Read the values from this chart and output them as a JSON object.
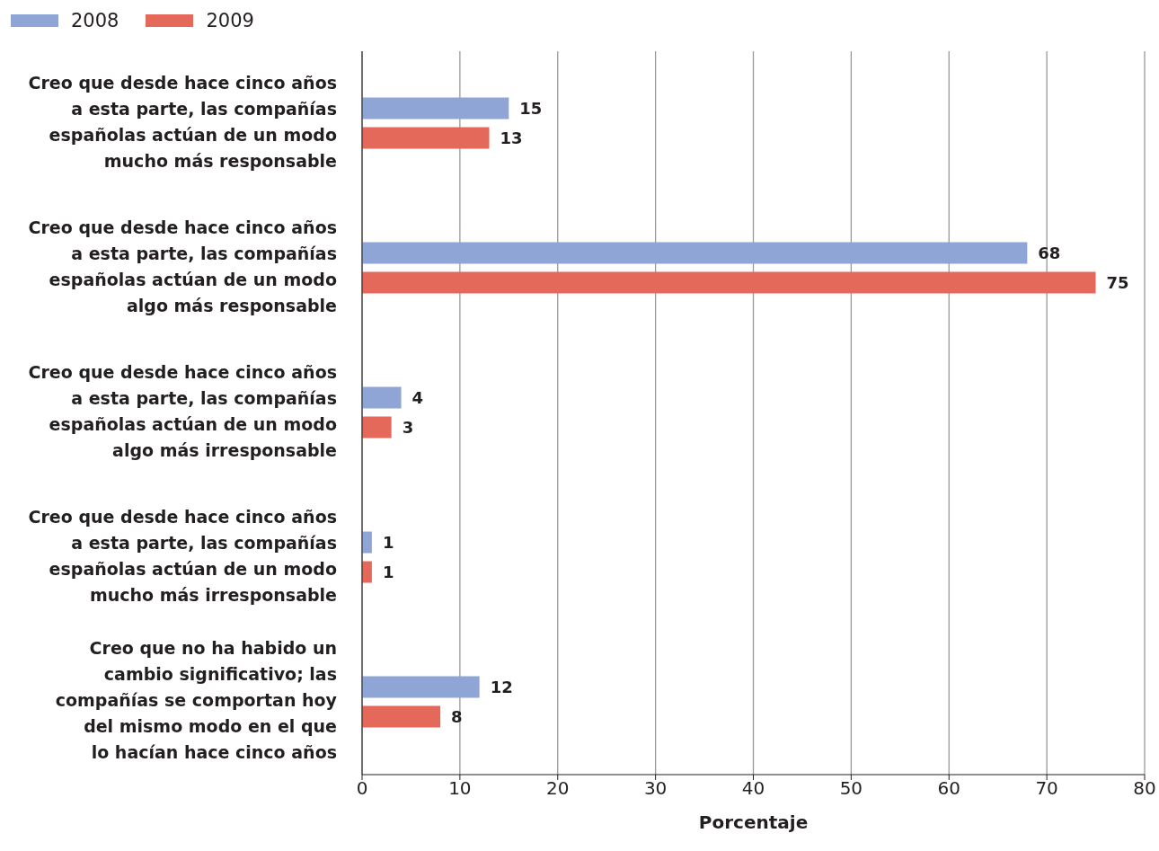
{
  "chart_data": {
    "type": "bar",
    "orientation": "horizontal",
    "xlabel": "Porcentaje",
    "categories": [
      "Creo que desde hace cinco años\na esta parte, las compañías\nespañolas actúan de un modo\nmucho más responsable",
      "Creo que desde hace cinco años\na esta parte, las compañías\nespañolas actúan de un modo\nalgo más responsable",
      "Creo que desde hace cinco años\na esta parte, las compañías\nespañolas actúan de un modo\nalgo más irresponsable",
      "Creo que desde hace cinco años\na esta parte, las compañías\nespañolas actúan de un modo\nmucho más irresponsable",
      "Creo que no ha habido un\ncambio significativo; las\ncompañías se comportan hoy\ndel mismo modo en el que\nlo hacían hace cinco años"
    ],
    "series": [
      {
        "name": "2008",
        "color": "#8ea5d6",
        "values": [
          15,
          68,
          4,
          1,
          12
        ]
      },
      {
        "name": "2009",
        "color": "#e5695b",
        "values": [
          13,
          75,
          3,
          1,
          8
        ]
      }
    ],
    "xlim": [
      0,
      80
    ],
    "xticks": [
      0,
      10,
      20,
      30,
      40,
      50,
      60,
      70,
      80
    ],
    "grid": "x",
    "legend": "top left",
    "data_labels": true
  }
}
